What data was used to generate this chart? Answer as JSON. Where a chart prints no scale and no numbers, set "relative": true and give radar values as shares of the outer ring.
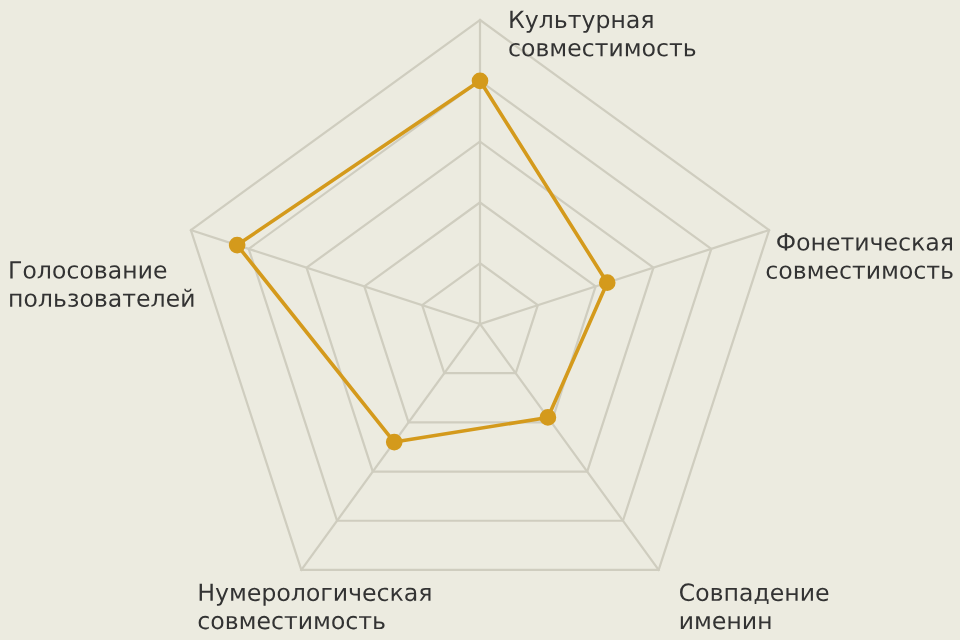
{
  "chart_data": {
    "type": "radar",
    "relative": true,
    "categories": [
      "Культурная\nсовместимость",
      "Фонетическая\nсовместимость",
      "Совпадение\nименин",
      "Нумерологическая\nсовместимость",
      "Голосование\nпользователей"
    ],
    "series": [
      {
        "color": "#d49a1c",
        "values": [
          0.8,
          0.44,
          0.38,
          0.48,
          0.84
        ]
      }
    ],
    "grid": true,
    "marker": "circle"
  }
}
